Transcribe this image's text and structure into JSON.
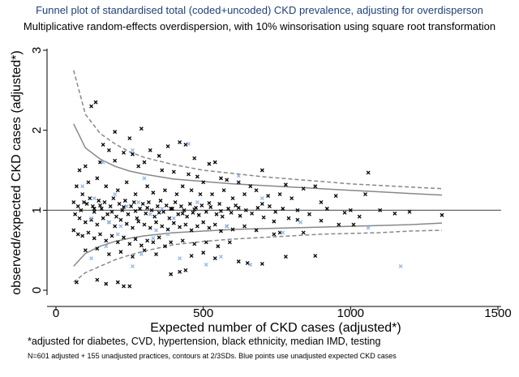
{
  "chart_data": {
    "type": "scatter",
    "title": "Funnel plot of standardised total (coded+uncoded) CKD prevalence, adjusting for overdisperson",
    "subtitle": "Multiplicative random-effects overdispersion, with 10% winsorisation using square root transformation",
    "xlabel": "Expected number of CKD cases (adjusted*)",
    "ylabel": "observed/expected CKD cases (adjusted*)",
    "xlim": [
      -20,
      1530
    ],
    "ylim": [
      -0.02,
      3.05
    ],
    "xticks": [
      "0",
      "500",
      "1000",
      "1500"
    ],
    "yticks": [
      "0",
      "1",
      "2",
      "3"
    ],
    "xtick_values": [
      0,
      500,
      1000,
      1500
    ],
    "ytick_values": [
      0,
      1,
      2,
      3
    ],
    "reference_line": 1,
    "contours": {
      "x": [
        60,
        100,
        150,
        200,
        250,
        300,
        400,
        500,
        600,
        700,
        800,
        900,
        1000,
        1100,
        1200,
        1310
      ],
      "sd2_upper": [
        2.08,
        1.78,
        1.64,
        1.55,
        1.49,
        1.45,
        1.39,
        1.36,
        1.33,
        1.31,
        1.29,
        1.27,
        1.25,
        1.23,
        1.21,
        1.19
      ],
      "sd2_lower": [
        0.3,
        0.46,
        0.55,
        0.61,
        0.65,
        0.68,
        0.72,
        0.74,
        0.76,
        0.77,
        0.78,
        0.79,
        0.8,
        0.81,
        0.82,
        0.84
      ],
      "sd3_upper": [
        2.75,
        2.2,
        1.96,
        1.83,
        1.73,
        1.66,
        1.57,
        1.5,
        1.46,
        1.42,
        1.39,
        1.36,
        1.33,
        1.31,
        1.29,
        1.27
      ],
      "sd3_lower": [
        0.1,
        0.22,
        0.3,
        0.38,
        0.44,
        0.49,
        0.57,
        0.61,
        0.64,
        0.66,
        0.68,
        0.7,
        0.71,
        0.72,
        0.74,
        0.75
      ]
    },
    "series": [
      {
        "marker": "x",
        "color": "#000000",
        "points": [
          [
            120,
            2.3
          ],
          [
            135,
            2.35
          ],
          [
            200,
            1.98
          ],
          [
            290,
            2.02
          ],
          [
            250,
            1.9
          ],
          [
            420,
            1.85
          ],
          [
            440,
            1.82
          ],
          [
            380,
            1.8
          ],
          [
            320,
            1.75
          ],
          [
            160,
            1.82
          ],
          [
            180,
            1.75
          ],
          [
            230,
            1.72
          ],
          [
            260,
            1.7
          ],
          [
            350,
            1.68
          ],
          [
            470,
            1.65
          ],
          [
            520,
            1.58
          ],
          [
            540,
            1.6
          ],
          [
            700,
            1.5
          ],
          [
            1060,
            1.47
          ],
          [
            80,
            1.5
          ],
          [
            100,
            1.55
          ],
          [
            150,
            1.6
          ],
          [
            200,
            1.62
          ],
          [
            280,
            1.55
          ],
          [
            300,
            1.6
          ],
          [
            360,
            1.5
          ],
          [
            400,
            1.48
          ],
          [
            450,
            1.45
          ],
          [
            480,
            1.42
          ],
          [
            500,
            1.35
          ],
          [
            560,
            1.4
          ],
          [
            580,
            1.38
          ],
          [
            620,
            1.35
          ],
          [
            660,
            1.3
          ],
          [
            780,
            1.32
          ],
          [
            840,
            1.27
          ],
          [
            880,
            1.3
          ],
          [
            70,
            1.3
          ],
          [
            90,
            1.2
          ],
          [
            110,
            1.35
          ],
          [
            140,
            1.4
          ],
          [
            170,
            1.3
          ],
          [
            210,
            1.25
          ],
          [
            240,
            1.35
          ],
          [
            270,
            1.2
          ],
          [
            310,
            1.3
          ],
          [
            330,
            1.22
          ],
          [
            370,
            1.25
          ],
          [
            410,
            1.2
          ],
          [
            430,
            1.3
          ],
          [
            460,
            1.25
          ],
          [
            490,
            1.2
          ],
          [
            530,
            1.2
          ],
          [
            570,
            1.25
          ],
          [
            600,
            1.15
          ],
          [
            640,
            1.2
          ],
          [
            680,
            1.25
          ],
          [
            720,
            1.18
          ],
          [
            760,
            1.2
          ],
          [
            800,
            1.15
          ],
          [
            900,
            1.1
          ],
          [
            950,
            1.18
          ],
          [
            1050,
            1.2
          ],
          [
            60,
            1.1
          ],
          [
            75,
            1.05
          ],
          [
            85,
            1.0
          ],
          [
            95,
            1.1
          ],
          [
            105,
            1.08
          ],
          [
            115,
            1.15
          ],
          [
            125,
            1.05
          ],
          [
            130,
            0.98
          ],
          [
            145,
            1.12
          ],
          [
            155,
            1.02
          ],
          [
            165,
            1.1
          ],
          [
            175,
            0.95
          ],
          [
            185,
            1.05
          ],
          [
            195,
            1.15
          ],
          [
            205,
            0.92
          ],
          [
            215,
            1.08
          ],
          [
            225,
            1.0
          ],
          [
            235,
            1.12
          ],
          [
            245,
            0.95
          ],
          [
            255,
            1.05
          ],
          [
            265,
            1.1
          ],
          [
            275,
            0.9
          ],
          [
            285,
            1.02
          ],
          [
            295,
            1.08
          ],
          [
            305,
            0.96
          ],
          [
            315,
            1.1
          ],
          [
            325,
            1.0
          ],
          [
            335,
            0.92
          ],
          [
            345,
            1.05
          ],
          [
            355,
            1.12
          ],
          [
            365,
            0.98
          ],
          [
            375,
            1.06
          ],
          [
            385,
            0.9
          ],
          [
            395,
            1.02
          ],
          [
            405,
            1.1
          ],
          [
            415,
            0.95
          ],
          [
            425,
            1.05
          ],
          [
            435,
            1.0
          ],
          [
            445,
            0.92
          ],
          [
            455,
            1.08
          ],
          [
            465,
            0.97
          ],
          [
            475,
            1.03
          ],
          [
            485,
            0.94
          ],
          [
            495,
            1.06
          ],
          [
            510,
            0.98
          ],
          [
            525,
            1.04
          ],
          [
            545,
            0.95
          ],
          [
            555,
            1.08
          ],
          [
            565,
            0.92
          ],
          [
            585,
            1.02
          ],
          [
            595,
            0.97
          ],
          [
            610,
            1.06
          ],
          [
            625,
            0.93
          ],
          [
            645,
            1.0
          ],
          [
            665,
            0.96
          ],
          [
            685,
            1.03
          ],
          [
            705,
            0.91
          ],
          [
            725,
            1.05
          ],
          [
            745,
            0.98
          ],
          [
            770,
            1.02
          ],
          [
            790,
            0.9
          ],
          [
            820,
            1.0
          ],
          [
            860,
            0.95
          ],
          [
            920,
            1.02
          ],
          [
            980,
            0.97
          ],
          [
            1030,
            0.92
          ],
          [
            1100,
            1.0
          ],
          [
            1150,
            0.96
          ],
          [
            1200,
            0.98
          ],
          [
            1310,
            0.94
          ],
          [
            65,
            0.95
          ],
          [
            80,
            0.9
          ],
          [
            100,
            0.85
          ],
          [
            120,
            0.88
          ],
          [
            140,
            0.82
          ],
          [
            160,
            0.9
          ],
          [
            180,
            0.85
          ],
          [
            200,
            0.8
          ],
          [
            220,
            0.88
          ],
          [
            240,
            0.83
          ],
          [
            260,
            0.78
          ],
          [
            280,
            0.86
          ],
          [
            300,
            0.82
          ],
          [
            320,
            0.78
          ],
          [
            340,
            0.85
          ],
          [
            360,
            0.8
          ],
          [
            380,
            0.76
          ],
          [
            400,
            0.84
          ],
          [
            420,
            0.79
          ],
          [
            440,
            0.82
          ],
          [
            460,
            0.75
          ],
          [
            480,
            0.8
          ],
          [
            500,
            0.85
          ],
          [
            520,
            0.78
          ],
          [
            540,
            0.82
          ],
          [
            560,
            0.74
          ],
          [
            580,
            0.8
          ],
          [
            600,
            0.76
          ],
          [
            640,
            0.8
          ],
          [
            680,
            0.75
          ],
          [
            740,
            0.7
          ],
          [
            760,
            0.72
          ],
          [
            840,
            0.72
          ],
          [
            960,
            0.82
          ],
          [
            1010,
            0.82
          ],
          [
            60,
            0.75
          ],
          [
            75,
            0.7
          ],
          [
            90,
            0.68
          ],
          [
            110,
            0.72
          ],
          [
            130,
            0.65
          ],
          [
            150,
            0.7
          ],
          [
            170,
            0.62
          ],
          [
            190,
            0.68
          ],
          [
            210,
            0.6
          ],
          [
            230,
            0.66
          ],
          [
            250,
            0.58
          ],
          [
            270,
            0.64
          ],
          [
            290,
            0.56
          ],
          [
            310,
            0.62
          ],
          [
            330,
            0.6
          ],
          [
            350,
            0.66
          ],
          [
            370,
            0.55
          ],
          [
            390,
            0.6
          ],
          [
            430,
            0.62
          ],
          [
            470,
            0.58
          ],
          [
            510,
            0.6
          ],
          [
            550,
            0.55
          ],
          [
            590,
            0.6
          ],
          [
            100,
            0.5
          ],
          [
            140,
            0.52
          ],
          [
            180,
            0.45
          ],
          [
            220,
            0.48
          ],
          [
            260,
            0.42
          ],
          [
            300,
            0.5
          ],
          [
            340,
            0.45
          ],
          [
            460,
            0.43
          ],
          [
            500,
            0.47
          ],
          [
            540,
            0.4
          ],
          [
            620,
            0.36
          ],
          [
            650,
            0.34
          ],
          [
            700,
            0.33
          ],
          [
            780,
            0.42
          ],
          [
            880,
            0.43
          ],
          [
            70,
            0.1
          ],
          [
            140,
            0.13
          ],
          [
            170,
            0.08
          ],
          [
            210,
            0.1
          ],
          [
            230,
            0.05
          ],
          [
            250,
            0.05
          ],
          [
            390,
            0.2
          ],
          [
            420,
            0.23
          ],
          [
            440,
            0.25
          ],
          [
            130,
            1.02
          ],
          [
            150,
            1.06
          ],
          [
            190,
            0.98
          ],
          [
            230,
            1.04
          ],
          [
            270,
            0.99
          ],
          [
            310,
            1.03
          ],
          [
            350,
            0.97
          ],
          [
            390,
            1.02
          ],
          [
            430,
            0.96
          ],
          [
            470,
            1.01
          ],
          [
            520,
            1.09
          ],
          [
            560,
            0.99
          ],
          [
            620,
            1.03
          ],
          [
            700,
            1.08
          ],
          [
            740,
            0.86
          ],
          [
            820,
            0.88
          ],
          [
            1000,
            1.0
          ],
          [
            900,
            0.87
          ]
        ]
      },
      {
        "marker": "x",
        "color": "#8fb6e8",
        "points": [
          [
            450,
            1.83
          ],
          [
            260,
            1.75
          ],
          [
            160,
            1.6
          ],
          [
            300,
            1.4
          ],
          [
            620,
            1.43
          ],
          [
            90,
            1.3
          ],
          [
            130,
            1.15
          ],
          [
            200,
            1.2
          ],
          [
            240,
            1.05
          ],
          [
            280,
            1.1
          ],
          [
            320,
            0.95
          ],
          [
            360,
            1.02
          ],
          [
            400,
            0.9
          ],
          [
            480,
            1.1
          ],
          [
            700,
            1.15
          ],
          [
            120,
            0.9
          ],
          [
            180,
            0.85
          ],
          [
            220,
            0.8
          ],
          [
            340,
            0.75
          ],
          [
            380,
            0.7
          ],
          [
            580,
            0.8
          ],
          [
            770,
            0.72
          ],
          [
            1060,
            0.78
          ],
          [
            830,
            0.85
          ],
          [
            170,
            0.55
          ],
          [
            290,
            0.45
          ],
          [
            420,
            0.4
          ],
          [
            510,
            0.32
          ],
          [
            660,
            0.32
          ],
          [
            1170,
            0.3
          ],
          [
            260,
            0.3
          ],
          [
            120,
            0.4
          ],
          [
            330,
            0.65
          ],
          [
            210,
            0.7
          ],
          [
            560,
            0.42
          ]
        ]
      }
    ]
  }
}
